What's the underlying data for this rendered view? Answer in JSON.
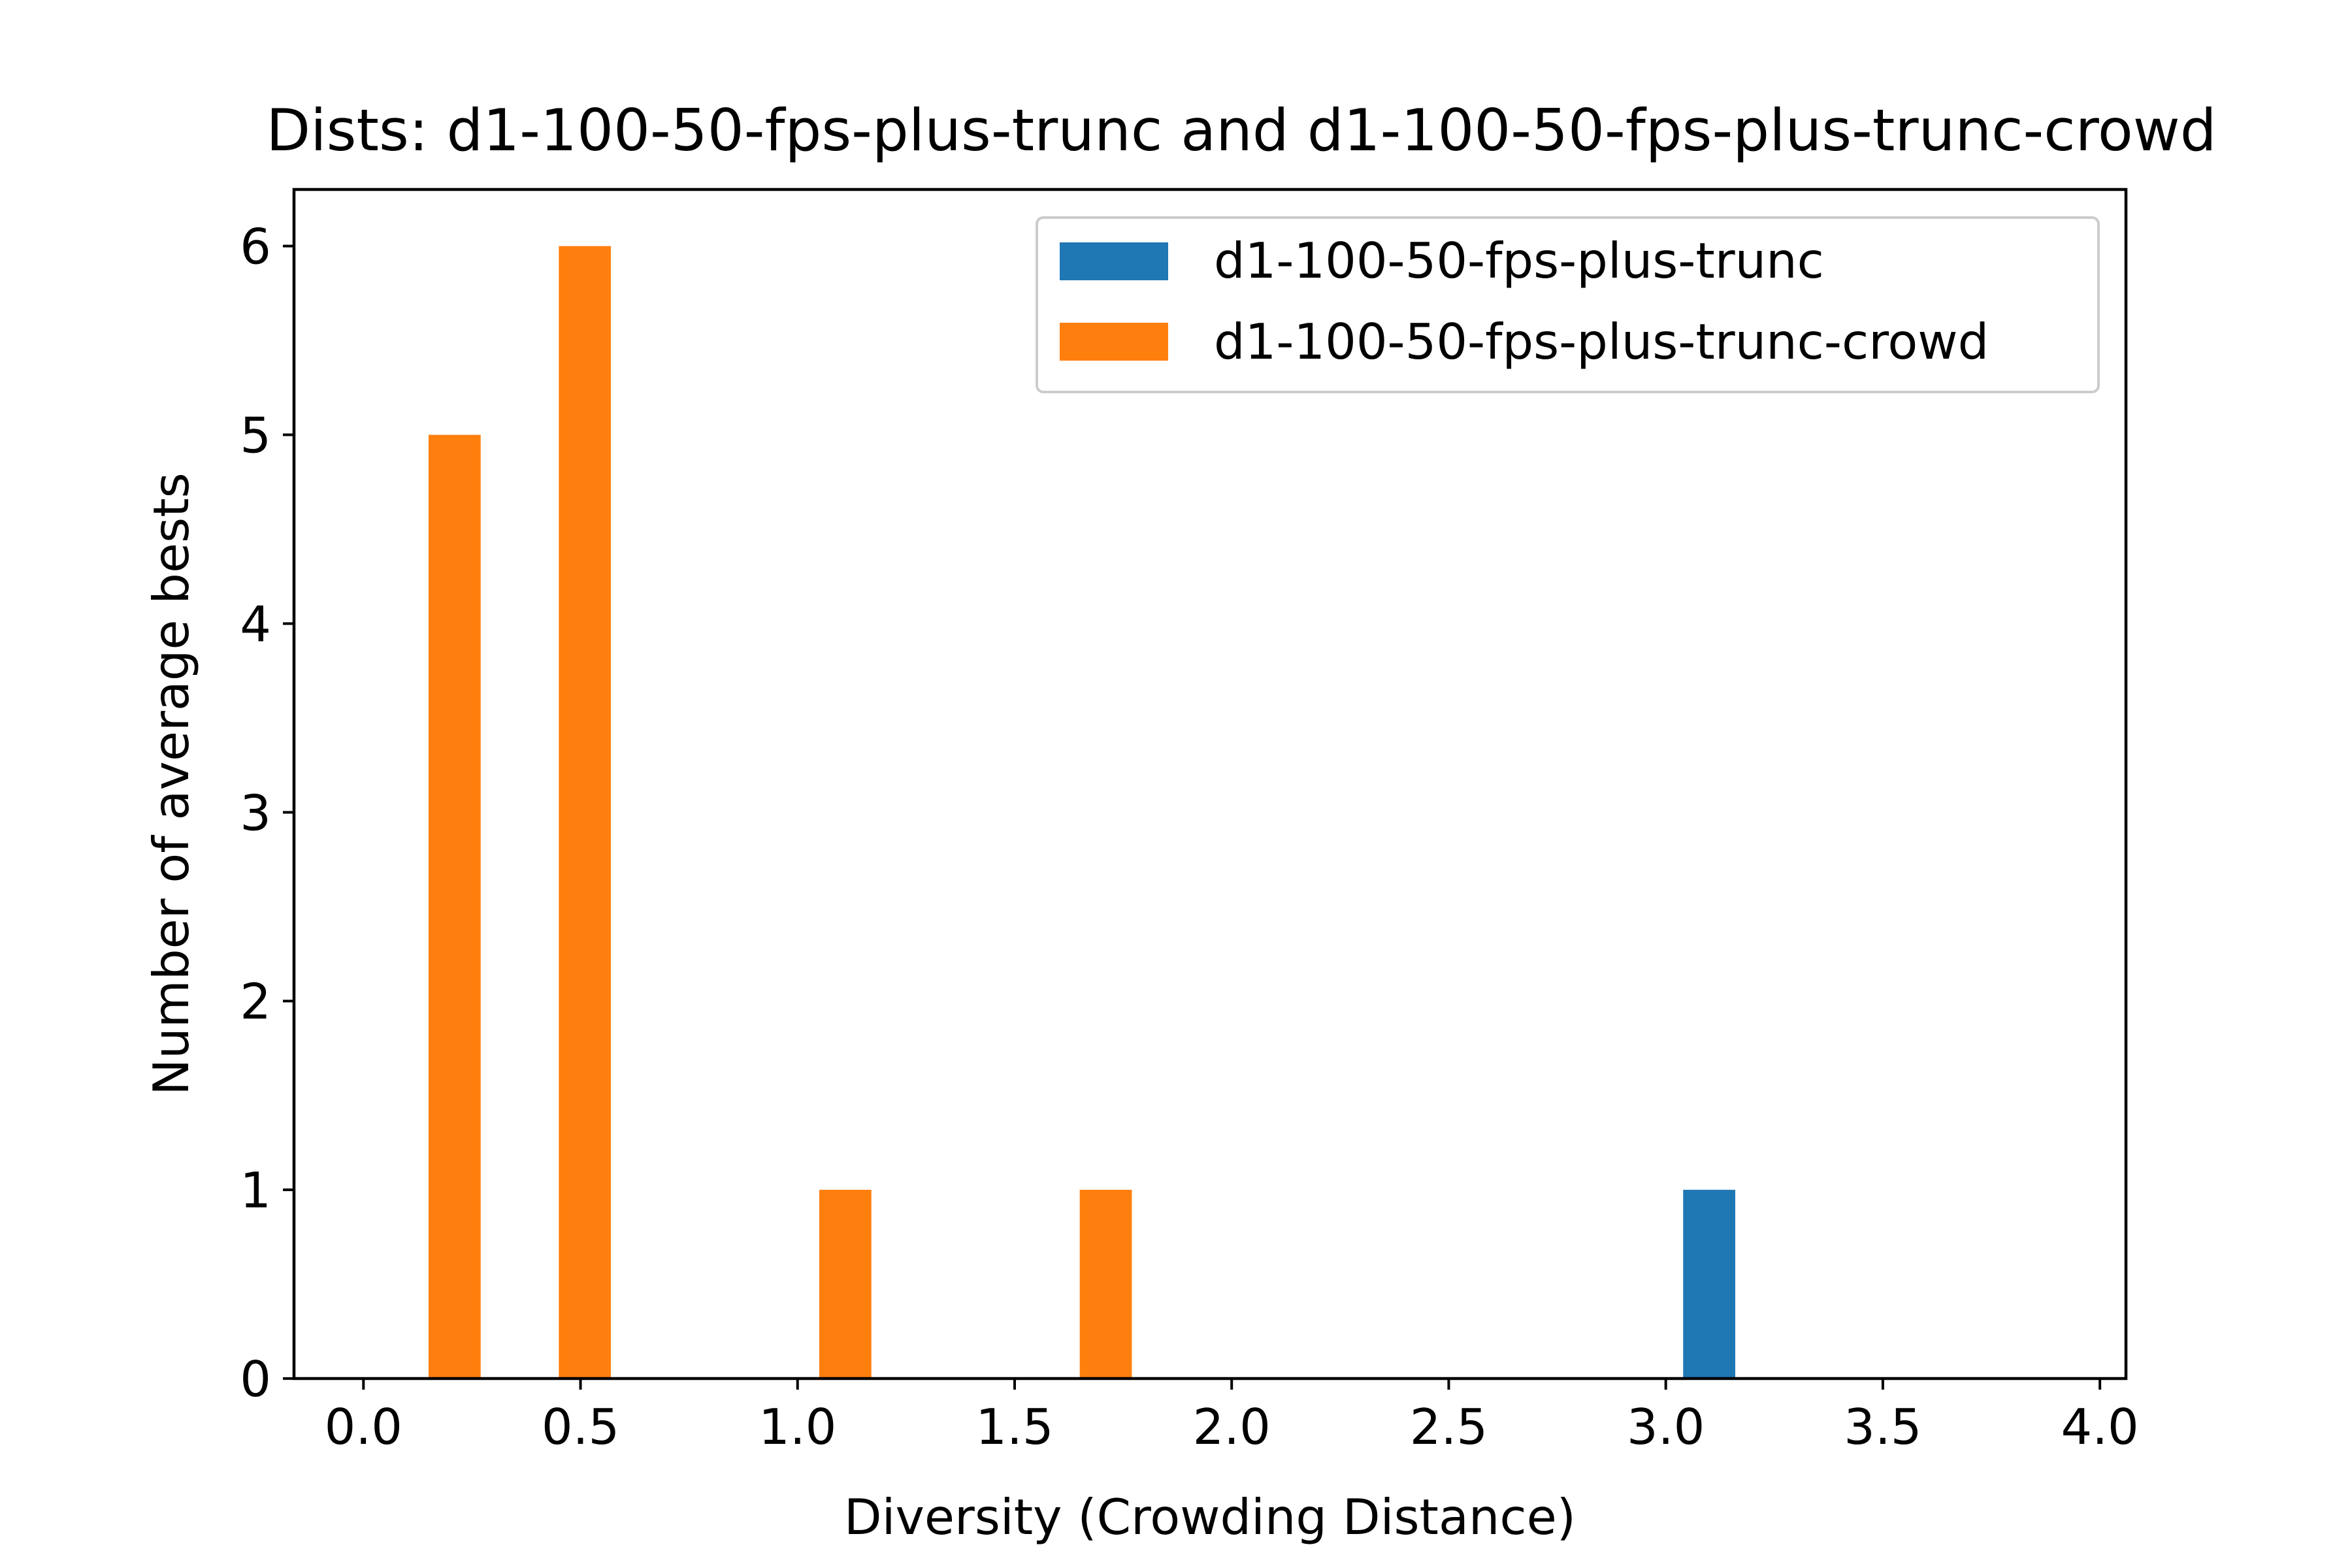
{
  "chart_data": {
    "type": "bar",
    "title": "Dists: d1-100-50-fps-plus-trunc and d1-100-50-fps-plus-trunc-crowd",
    "xlabel": "Diversity (Crowding Distance)",
    "ylabel": "Number of average bests",
    "xlim": [
      -0.16,
      4.06
    ],
    "ylim": [
      0,
      6.3
    ],
    "bar_width": 0.12,
    "xticks": [
      "0.0",
      "0.5",
      "1.0",
      "1.5",
      "2.0",
      "2.5",
      "3.0",
      "3.5",
      "4.0"
    ],
    "yticks": [
      "0",
      "1",
      "2",
      "3",
      "4",
      "5",
      "6"
    ],
    "grid": false,
    "legend_position": "top-right",
    "series": [
      {
        "name": "d1-100-50-fps-plus-trunc",
        "color": "#1f77b4",
        "bars": [
          {
            "x": 3.1,
            "value": 1
          }
        ]
      },
      {
        "name": "d1-100-50-fps-plus-trunc-crowd",
        "color": "#ff7f0e",
        "bars": [
          {
            "x": 0.21,
            "value": 5
          },
          {
            "x": 0.51,
            "value": 6
          },
          {
            "x": 1.11,
            "value": 1
          },
          {
            "x": 1.71,
            "value": 1
          }
        ]
      }
    ]
  }
}
